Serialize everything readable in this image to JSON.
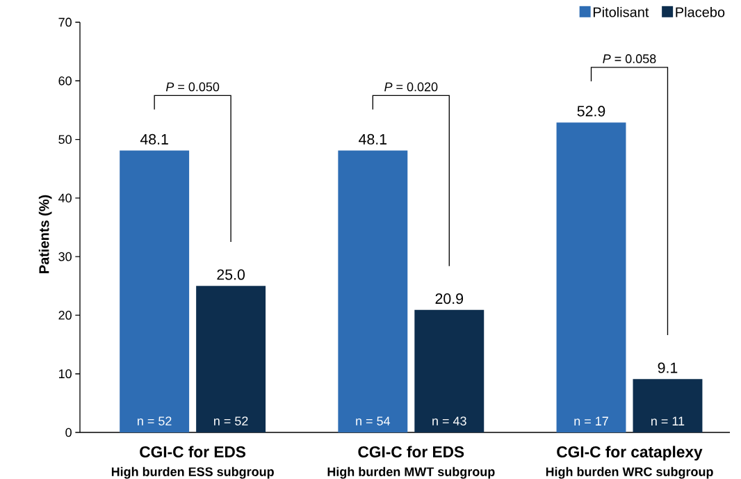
{
  "chart_data": {
    "type": "bar",
    "ylabel": "Patients (%)",
    "categories": [
      "CGI-C for EDS",
      "CGI-C for EDS",
      "CGI-C for cataplexy"
    ],
    "series": [
      {
        "name": "Pitolisant",
        "color": "#2e6db4",
        "values": [
          48.1,
          48.1,
          52.9
        ],
        "value_labels": [
          "48.1",
          "48.1",
          "52.9"
        ]
      },
      {
        "name": "Placebo",
        "color": "#0d2e4e",
        "values": [
          25.0,
          20.9,
          9.1
        ],
        "value_labels": [
          "25.0",
          "20.9",
          "9.1"
        ]
      }
    ],
    "ylim": [
      0,
      70
    ],
    "yticks": [
      0,
      10,
      20,
      30,
      40,
      50,
      60,
      70
    ],
    "legend": "top right",
    "annotations": [
      "*P* = 0.050",
      "*P* = 0.020",
      "*P* = 0.058",
      "n = 52",
      "n = 52",
      "n = 54",
      "n = 43",
      "n = 17",
      "n = 11",
      "High burden ESS subgroup",
      "High burden MWT subgroup",
      "High burden WRC subgroup"
    ]
  }
}
